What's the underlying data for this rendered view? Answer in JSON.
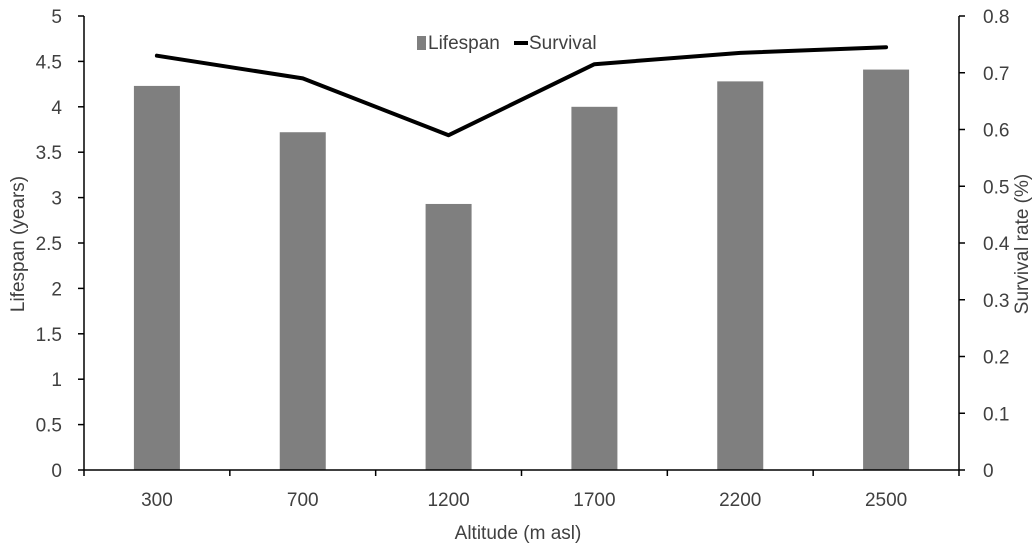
{
  "chart_data": {
    "type": "bar",
    "categories": [
      "300",
      "700",
      "1200",
      "1700",
      "2200",
      "2500"
    ],
    "series": [
      {
        "name": "Lifespan",
        "type": "bar",
        "axis": "left",
        "color": "#7f7f7f",
        "values": [
          4.23,
          3.72,
          2.93,
          4.0,
          4.28,
          4.41
        ]
      },
      {
        "name": "Survival",
        "type": "line",
        "axis": "right",
        "color": "#000000",
        "values": [
          0.73,
          0.69,
          0.59,
          0.715,
          0.735,
          0.745
        ]
      }
    ],
    "xlabel": "Altitude (m asl)",
    "ylabel": "Lifespan (years)",
    "y2label": "Survival rate (%)",
    "ylim": [
      0,
      5
    ],
    "y2lim": [
      0,
      0.8
    ],
    "yticks": [
      "0",
      "0.5",
      "1",
      "1.5",
      "2",
      "2.5",
      "3",
      "3.5",
      "4",
      "4.5",
      "5"
    ],
    "y2ticks": [
      "0",
      "0.1",
      "0.2",
      "0.3",
      "0.4",
      "0.5",
      "0.6",
      "0.7",
      "0.8"
    ],
    "legend_position": "top-center",
    "grid": false
  }
}
